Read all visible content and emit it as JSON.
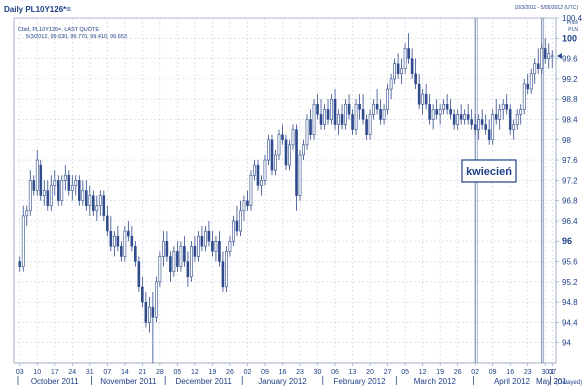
{
  "header": {
    "title": "Daily PL10Y126*=",
    "date_range": "10/3/2011 - 5/05/2012 (UTC)",
    "price_label": "Price",
    "currency_label": "PLN"
  },
  "legend": {
    "line1": "Cbid, PL10Y126=, LAST QUOTE",
    "line2": "5/3/2012, 99.630, 99.770, 99.410, 99.653"
  },
  "annotation": {
    "text": "kwiecień"
  },
  "footer": {
    "delayed": "(Delayed)"
  },
  "colors": {
    "background": "#ffffff",
    "plot_border": "#8a9bb8",
    "grid": "#c9d3e3",
    "candle": "#2e4a8c",
    "text": "#1d3f86",
    "marker": "#6b7fa6"
  },
  "chart_data": {
    "type": "candlestick",
    "ylim": [
      93.6,
      100.4
    ],
    "y_ticks": [
      "94",
      "94.4",
      "94.8",
      "95.2",
      "95.6",
      "96",
      "96.4",
      "96.8",
      "97.2",
      "97.6",
      "98",
      "98.4",
      "98.8",
      "99.2",
      "99.6",
      "100",
      "100.4"
    ],
    "y_bold_ticks": [
      "96",
      "100"
    ],
    "last_price_marker": 99.65,
    "grid": true,
    "x_day_ticks": [
      "03",
      "10",
      "17",
      "24",
      "31",
      "07",
      "14",
      "21",
      "28",
      "05",
      "12",
      "19",
      "26",
      "02",
      "09",
      "16",
      "23",
      "30",
      "06",
      "13",
      "20",
      "27",
      "05",
      "12",
      "19",
      "26",
      "02",
      "09",
      "16",
      "23",
      "30",
      "07",
      "1"
    ],
    "x_month_ticks": [
      "October 2011",
      "November 2011",
      "December 2011",
      "January 2012",
      "February 2012",
      "March 2012",
      "April 2012",
      "May 201"
    ],
    "month_start_bars": [
      0,
      21,
      42,
      64,
      87,
      108,
      130,
      152,
      153
    ],
    "vertical_markers": [
      {
        "bar": 130,
        "label": "02"
      },
      {
        "bar": 149,
        "label": "30"
      }
    ],
    "ohlc": [
      [
        95.6,
        95.7,
        95.4,
        95.5
      ],
      [
        95.5,
        96.7,
        95.4,
        96.5
      ],
      [
        96.5,
        96.7,
        96.3,
        96.6
      ],
      [
        96.6,
        97.4,
        96.5,
        97.2
      ],
      [
        97.2,
        97.3,
        96.9,
        97.0
      ],
      [
        97.0,
        97.8,
        96.9,
        97.6
      ],
      [
        97.5,
        97.6,
        96.8,
        96.9
      ],
      [
        96.9,
        97.2,
        96.7,
        97.0
      ],
      [
        97.0,
        97.2,
        96.6,
        96.7
      ],
      [
        96.7,
        97.3,
        96.6,
        97.1
      ],
      [
        97.1,
        97.4,
        96.9,
        97.2
      ],
      [
        97.2,
        97.3,
        96.7,
        96.8
      ],
      [
        96.8,
        97.3,
        96.7,
        97.2
      ],
      [
        97.2,
        97.5,
        97.0,
        97.3
      ],
      [
        97.3,
        97.4,
        96.9,
        97.0
      ],
      [
        97.0,
        97.3,
        96.8,
        97.1
      ],
      [
        97.1,
        97.3,
        96.9,
        97.2
      ],
      [
        97.2,
        97.3,
        96.7,
        96.8
      ],
      [
        96.8,
        97.2,
        96.7,
        97.0
      ],
      [
        97.0,
        97.2,
        96.6,
        96.7
      ],
      [
        96.7,
        97.1,
        96.5,
        96.9
      ],
      [
        96.9,
        97.0,
        96.5,
        96.6
      ],
      [
        96.6,
        96.9,
        96.4,
        96.7
      ],
      [
        96.7,
        97.0,
        96.5,
        96.9
      ],
      [
        96.9,
        97.0,
        96.4,
        96.5
      ],
      [
        96.5,
        96.7,
        96.1,
        96.2
      ],
      [
        96.2,
        96.5,
        95.8,
        95.9
      ],
      [
        95.9,
        96.2,
        95.7,
        96.1
      ],
      [
        96.1,
        96.3,
        95.8,
        95.9
      ],
      [
        95.9,
        96.0,
        95.6,
        95.7
      ],
      [
        95.7,
        96.3,
        95.6,
        96.2
      ],
      [
        96.2,
        96.4,
        96.0,
        96.1
      ],
      [
        96.1,
        96.3,
        95.8,
        95.9
      ],
      [
        95.9,
        96.0,
        95.5,
        95.6
      ],
      [
        95.6,
        95.7,
        95.0,
        95.1
      ],
      [
        95.1,
        95.3,
        94.7,
        94.8
      ],
      [
        94.8,
        95.0,
        94.3,
        94.4
      ],
      [
        94.4,
        94.9,
        94.2,
        94.7
      ],
      [
        94.7,
        95.0,
        93.6,
        94.5
      ],
      [
        94.5,
        95.3,
        94.4,
        95.2
      ],
      [
        95.2,
        95.8,
        95.1,
        95.7
      ],
      [
        95.7,
        96.2,
        95.5,
        96.0
      ],
      [
        96.0,
        96.2,
        95.6,
        95.7
      ],
      [
        95.7,
        95.8,
        95.2,
        95.4
      ],
      [
        95.4,
        95.9,
        95.3,
        95.8
      ],
      [
        95.8,
        96.0,
        95.4,
        95.5
      ],
      [
        95.5,
        96.0,
        95.4,
        95.9
      ],
      [
        95.9,
        96.1,
        95.5,
        95.6
      ],
      [
        95.6,
        95.8,
        95.1,
        95.3
      ],
      [
        95.3,
        96.0,
        95.2,
        95.9
      ],
      [
        95.9,
        96.1,
        95.6,
        95.7
      ],
      [
        95.7,
        96.2,
        95.6,
        96.1
      ],
      [
        96.1,
        96.3,
        95.8,
        95.9
      ],
      [
        95.9,
        96.3,
        95.8,
        96.2
      ],
      [
        96.2,
        96.4,
        95.9,
        96.0
      ],
      [
        96.0,
        96.2,
        95.7,
        95.8
      ],
      [
        95.8,
        96.1,
        95.6,
        96.0
      ],
      [
        96.0,
        96.2,
        95.5,
        95.6
      ],
      [
        95.6,
        95.8,
        95.0,
        95.1
      ],
      [
        95.1,
        95.9,
        95.0,
        95.8
      ],
      [
        95.8,
        96.1,
        95.7,
        96.0
      ],
      [
        96.0,
        96.5,
        95.9,
        96.4
      ],
      [
        96.4,
        96.7,
        96.1,
        96.2
      ],
      [
        96.2,
        96.8,
        96.1,
        96.6
      ],
      [
        96.6,
        96.9,
        96.4,
        96.8
      ],
      [
        96.8,
        97.0,
        96.6,
        96.7
      ],
      [
        96.7,
        97.4,
        96.6,
        97.3
      ],
      [
        97.3,
        97.6,
        97.2,
        97.5
      ],
      [
        97.5,
        97.6,
        97.0,
        97.1
      ],
      [
        97.1,
        97.3,
        96.9,
        97.2
      ],
      [
        97.2,
        97.7,
        97.1,
        97.6
      ],
      [
        97.6,
        98.1,
        97.5,
        98.0
      ],
      [
        98.0,
        98.1,
        97.3,
        97.4
      ],
      [
        97.4,
        97.8,
        97.3,
        97.7
      ],
      [
        97.7,
        98.2,
        97.6,
        98.1
      ],
      [
        98.1,
        98.3,
        97.9,
        98.0
      ],
      [
        98.0,
        98.1,
        97.4,
        97.5
      ],
      [
        97.5,
        98.0,
        97.4,
        97.9
      ],
      [
        97.9,
        98.3,
        97.8,
        98.2
      ],
      [
        98.2,
        98.3,
        96.6,
        96.9
      ],
      [
        96.9,
        97.8,
        96.8,
        97.7
      ],
      [
        97.7,
        98.0,
        97.6,
        97.9
      ],
      [
        97.9,
        98.5,
        97.8,
        98.4
      ],
      [
        98.4,
        98.6,
        98.0,
        98.1
      ],
      [
        98.1,
        98.8,
        98.0,
        98.7
      ],
      [
        98.7,
        98.9,
        98.4,
        98.5
      ],
      [
        98.5,
        98.8,
        98.2,
        98.3
      ],
      [
        98.3,
        98.7,
        98.2,
        98.6
      ],
      [
        98.6,
        98.8,
        98.3,
        98.4
      ],
      [
        98.4,
        98.9,
        98.3,
        98.8
      ],
      [
        98.8,
        99.0,
        98.2,
        98.3
      ],
      [
        98.3,
        98.6,
        98.1,
        98.5
      ],
      [
        98.5,
        98.7,
        98.2,
        98.3
      ],
      [
        98.3,
        98.8,
        98.2,
        98.7
      ],
      [
        98.7,
        98.9,
        98.4,
        98.5
      ],
      [
        98.5,
        98.6,
        98.1,
        98.2
      ],
      [
        98.2,
        98.8,
        98.1,
        98.7
      ],
      [
        98.7,
        98.9,
        98.4,
        98.6
      ],
      [
        98.6,
        98.9,
        98.3,
        98.4
      ],
      [
        98.4,
        98.5,
        98.0,
        98.1
      ],
      [
        98.1,
        98.6,
        98.0,
        98.5
      ],
      [
        98.5,
        98.8,
        98.4,
        98.7
      ],
      [
        98.7,
        99.0,
        98.5,
        98.6
      ],
      [
        98.6,
        98.8,
        98.3,
        98.4
      ],
      [
        98.4,
        98.7,
        98.3,
        98.6
      ],
      [
        98.6,
        99.1,
        98.5,
        99.0
      ],
      [
        99.0,
        99.3,
        98.8,
        99.2
      ],
      [
        99.2,
        99.6,
        99.1,
        99.5
      ],
      [
        99.5,
        99.7,
        99.2,
        99.3
      ],
      [
        99.3,
        99.6,
        99.1,
        99.4
      ],
      [
        99.4,
        99.9,
        99.3,
        99.8
      ],
      [
        99.8,
        100.1,
        99.5,
        99.6
      ],
      [
        99.6,
        99.8,
        99.2,
        99.3
      ],
      [
        99.3,
        99.6,
        99.0,
        99.1
      ],
      [
        99.1,
        99.3,
        98.6,
        98.7
      ],
      [
        98.7,
        99.0,
        98.5,
        98.9
      ],
      [
        98.9,
        99.1,
        98.6,
        98.7
      ],
      [
        98.7,
        98.9,
        98.3,
        98.4
      ],
      [
        98.4,
        98.7,
        98.2,
        98.6
      ],
      [
        98.6,
        98.8,
        98.4,
        98.5
      ],
      [
        98.5,
        98.7,
        98.3,
        98.6
      ],
      [
        98.6,
        98.8,
        98.5,
        98.7
      ],
      [
        98.7,
        98.9,
        98.5,
        98.6
      ],
      [
        98.6,
        98.8,
        98.4,
        98.5
      ],
      [
        98.5,
        98.6,
        98.2,
        98.3
      ],
      [
        98.3,
        98.6,
        98.2,
        98.5
      ],
      [
        98.5,
        98.7,
        98.3,
        98.4
      ],
      [
        98.4,
        98.6,
        98.3,
        98.5
      ],
      [
        98.5,
        98.7,
        98.3,
        98.4
      ],
      [
        98.4,
        98.6,
        98.2,
        98.3
      ],
      [
        98.3,
        98.5,
        98.1,
        98.2
      ],
      [
        98.2,
        98.5,
        98.0,
        98.4
      ],
      [
        98.4,
        98.6,
        98.2,
        98.3
      ],
      [
        98.3,
        98.5,
        98.1,
        98.2
      ],
      [
        98.2,
        98.4,
        97.9,
        98.0
      ],
      [
        98.0,
        98.6,
        97.9,
        98.5
      ],
      [
        98.5,
        98.8,
        98.3,
        98.4
      ],
      [
        98.4,
        98.7,
        98.2,
        98.6
      ],
      [
        98.6,
        98.8,
        98.4,
        98.7
      ],
      [
        98.7,
        98.9,
        98.5,
        98.6
      ],
      [
        98.6,
        98.7,
        98.1,
        98.2
      ],
      [
        98.2,
        98.4,
        98.0,
        98.3
      ],
      [
        98.3,
        98.6,
        98.2,
        98.5
      ],
      [
        98.5,
        98.7,
        98.3,
        98.6
      ],
      [
        98.6,
        99.2,
        98.5,
        99.1
      ],
      [
        99.1,
        99.3,
        98.9,
        99.0
      ],
      [
        99.0,
        99.4,
        98.9,
        99.3
      ],
      [
        99.3,
        99.6,
        99.1,
        99.5
      ],
      [
        99.5,
        99.8,
        99.3,
        99.4
      ],
      [
        99.4,
        99.9,
        99.3,
        99.8
      ],
      [
        99.8,
        100.0,
        99.5,
        99.6
      ],
      [
        99.6,
        99.9,
        99.4,
        99.7
      ],
      [
        99.63,
        99.77,
        99.41,
        99.653
      ]
    ]
  }
}
